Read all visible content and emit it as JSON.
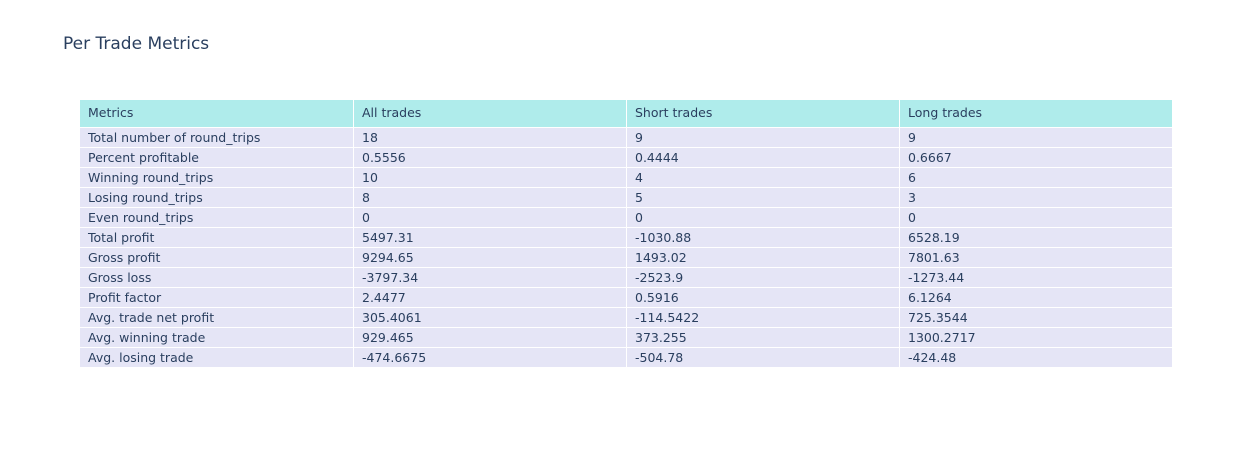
{
  "title": "Per Trade Metrics",
  "colors": {
    "header_fill": "#afeceb",
    "cell_fill": "#e5e5f6",
    "text": "#2a3f5f"
  },
  "chart_data": {
    "type": "table",
    "title": "Per Trade Metrics",
    "columns": [
      "Metrics",
      "All trades",
      "Short trades",
      "Long trades"
    ],
    "rows": [
      [
        "Total number of round_trips",
        "18",
        "9",
        "9"
      ],
      [
        "Percent profitable",
        "0.5556",
        "0.4444",
        "0.6667"
      ],
      [
        "Winning round_trips",
        "10",
        "4",
        "6"
      ],
      [
        "Losing round_trips",
        "8",
        "5",
        "3"
      ],
      [
        "Even round_trips",
        "0",
        "0",
        "0"
      ],
      [
        "Total profit",
        "5497.31",
        "-1030.88",
        "6528.19"
      ],
      [
        "Gross profit",
        "9294.65",
        "1493.02",
        "7801.63"
      ],
      [
        "Gross loss",
        "-3797.34",
        "-2523.9",
        "-1273.44"
      ],
      [
        "Profit factor",
        "2.4477",
        "0.5916",
        "6.1264"
      ],
      [
        "Avg. trade net profit",
        "305.4061",
        "-114.5422",
        "725.3544"
      ],
      [
        "Avg. winning trade",
        "929.465",
        "373.255",
        "1300.2717"
      ],
      [
        "Avg. losing trade",
        "-474.6675",
        "-504.78",
        "-424.48"
      ]
    ]
  }
}
